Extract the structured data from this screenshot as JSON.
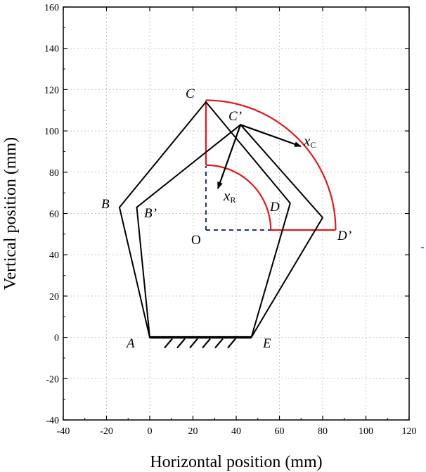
{
  "chart_data": {
    "type": "diagram",
    "xlabel": "Horizontal position (mm)",
    "ylabel": "Vertical position (mm)",
    "xlim": [
      -40,
      120
    ],
    "ylim": [
      -40,
      160
    ],
    "xticks": [
      -40,
      -20,
      0,
      20,
      40,
      60,
      80,
      100,
      120
    ],
    "yticks": [
      -40,
      -20,
      0,
      20,
      40,
      60,
      80,
      100,
      120,
      140,
      160
    ],
    "grid": true,
    "colors": {
      "linkage": "#000000",
      "workspace": "#e01a1a",
      "construction": "#1a2e8c"
    },
    "points": {
      "A": [
        0,
        0
      ],
      "E": [
        47,
        0
      ],
      "B": [
        -14,
        63
      ],
      "C": [
        26,
        114
      ],
      "D": [
        65,
        65
      ],
      "Bp": [
        -6,
        63
      ],
      "Cp": [
        42,
        103
      ],
      "Dp": [
        80,
        58
      ],
      "O": [
        26,
        52
      ],
      "R_top": [
        26,
        83
      ],
      "R_end": [
        56,
        52
      ],
      "C_top": [
        26,
        114.5
      ],
      "C_end": [
        86,
        52
      ]
    },
    "polygons": [
      {
        "name": "ABCDE",
        "points": [
          "A",
          "B",
          "C",
          "D",
          "E"
        ]
      },
      {
        "name": "AB'C'D'E",
        "points": [
          "A",
          "Bp",
          "Cp",
          "Dp",
          "E"
        ]
      }
    ],
    "labels": {
      "A": "A",
      "B": "B",
      "C": "C",
      "D": "D",
      "E": "E",
      "Bp": "B’",
      "Cp": "C’",
      "Dp": "D’",
      "O": "O",
      "xR": "x",
      "xR_sub": "R",
      "xC": "x",
      "xC_sub": "C"
    }
  }
}
